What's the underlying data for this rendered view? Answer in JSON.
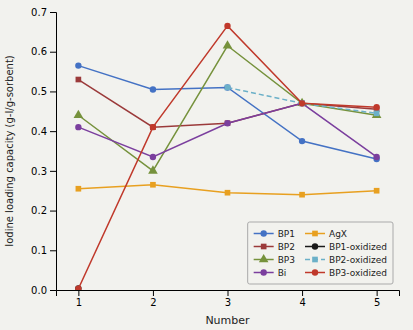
{
  "chart_data": {
    "type": "line",
    "xlabel": "Number",
    "ylabel": "Iodine loading capacity (g-I/g-sorbent)",
    "x": [
      1,
      2,
      3,
      4,
      5
    ],
    "xlim": [
      0.7,
      5.3
    ],
    "xticks": [
      1,
      2,
      3,
      4,
      5
    ],
    "ylim": [
      0.0,
      0.7
    ],
    "yticks": [
      {
        "value": 0.0,
        "label": "0.0"
      },
      0.1,
      0.2,
      0.3,
      0.4,
      0.5,
      0.6,
      0.7
    ],
    "grid": false,
    "legend": "lower right",
    "series": [
      {
        "name": "BP1",
        "color": "#4472C4",
        "marker": "circle",
        "line_style": "solid",
        "values": [
          0.565,
          0.505,
          0.51,
          0.375,
          0.33
        ]
      },
      {
        "name": "BP2",
        "color": "#9B3A3A",
        "marker": "square",
        "line_style": "solid",
        "values": [
          0.53,
          0.41,
          0.42,
          0.47,
          0.455
        ]
      },
      {
        "name": "BP3",
        "color": "#76923C",
        "marker": "triangle",
        "line_style": "solid",
        "values": [
          0.44,
          0.3,
          0.615,
          0.47,
          0.44
        ]
      },
      {
        "name": "Bi",
        "color": "#7B3F9E",
        "marker": "circle",
        "line_style": "solid",
        "values": [
          0.41,
          0.335,
          0.42,
          0.47,
          0.335
        ]
      },
      {
        "name": "AgX",
        "color": "#E8A020",
        "marker": "square",
        "line_style": "solid",
        "values": [
          0.255,
          0.265,
          0.245,
          0.24,
          0.25
        ]
      },
      {
        "name": "BP1-oxidized",
        "color": "#1A1A1A",
        "marker": "circle",
        "line_style": "solid",
        "values": [
          0.004,
          null,
          null,
          null,
          null
        ]
      },
      {
        "name": "BP2-oxidized",
        "color": "#6BB0C8",
        "marker": "square",
        "line_style": "dashed",
        "values": [
          null,
          null,
          0.51,
          0.47,
          0.445
        ]
      },
      {
        "name": "BP3-oxidized",
        "color": "#C0392B",
        "marker": "circle",
        "line_style": "solid",
        "values": [
          0.003,
          0.41,
          0.665,
          0.47,
          0.46
        ]
      }
    ]
  }
}
